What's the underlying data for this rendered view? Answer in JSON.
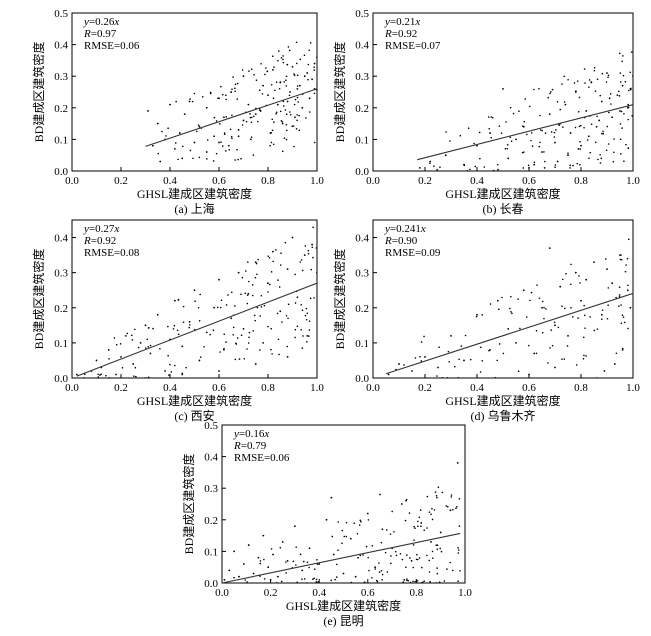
{
  "chart_data": [
    {
      "type": "scatter",
      "caption": "(a) 上海",
      "xlabel": "GHSL建成区建筑密度",
      "ylabel": "BD建成区建筑密度",
      "xlim": [
        0.0,
        1.0
      ],
      "ylim": [
        0.0,
        0.5
      ],
      "x_ticks": [
        "0.0",
        "0.2",
        "0.4",
        "0.6",
        "0.8",
        "1.0"
      ],
      "y_ticks": [
        "0.0",
        "0.1",
        "0.2",
        "0.3",
        "0.4",
        "0.5"
      ],
      "fit": {
        "slope": 0.26,
        "x_range": [
          0.3,
          1.0
        ]
      },
      "annotation": {
        "eq_var": "y",
        "eq_rest": "=0.26",
        "eq_x": "x",
        "r_var": "R",
        "r_rest": "=0.97",
        "rmse": "RMSE=0.06"
      },
      "series": [
        {
          "density": "high",
          "x": [
            0.31,
            0.33,
            0.35,
            0.38,
            0.4,
            0.42,
            0.44,
            0.46,
            0.48,
            0.5,
            0.52,
            0.55,
            0.58,
            0.6,
            0.62,
            0.65,
            0.68,
            0.7,
            0.72,
            0.75,
            0.78,
            0.8,
            0.82,
            0.85,
            0.88,
            0.9,
            0.92,
            0.95,
            0.98,
            1.0,
            0.36,
            0.45,
            0.55,
            0.64,
            0.73,
            0.81,
            0.86,
            0.91,
            0.94,
            0.97,
            0.99,
            0.7,
            0.77,
            0.84,
            0.89,
            0.93,
            0.96,
            0.99,
            0.6,
            0.68
          ],
          "y": [
            0.19,
            0.08,
            0.15,
            0.1,
            0.21,
            0.07,
            0.12,
            0.18,
            0.22,
            0.09,
            0.14,
            0.2,
            0.11,
            0.23,
            0.17,
            0.25,
            0.13,
            0.3,
            0.21,
            0.18,
            0.27,
            0.24,
            0.32,
            0.28,
            0.22,
            0.33,
            0.26,
            0.3,
            0.29,
            0.36,
            0.03,
            0.04,
            0.06,
            0.08,
            0.1,
            0.12,
            0.15,
            0.17,
            0.2,
            0.23,
            0.26,
            0.16,
            0.19,
            0.21,
            0.25,
            0.27,
            0.31,
            0.34,
            0.09,
            0.11
          ]
        }
      ]
    },
    {
      "type": "scatter",
      "caption": "(b) 长春",
      "xlabel": "GHSL建成区建筑密度",
      "ylabel": "BD建成区建筑密度",
      "xlim": [
        0.0,
        1.0
      ],
      "ylim": [
        0.0,
        0.5
      ],
      "x_ticks": [
        "0.0",
        "0.2",
        "0.4",
        "0.6",
        "0.8",
        "1.0"
      ],
      "y_ticks": [
        "0.0",
        "0.1",
        "0.2",
        "0.3",
        "0.4",
        "0.5"
      ],
      "fit": {
        "slope": 0.21,
        "x_range": [
          0.17,
          1.0
        ]
      },
      "annotation": {
        "eq_var": "y",
        "eq_rest": "=0.21",
        "eq_x": "x",
        "r_var": "R",
        "r_rest": "=0.92",
        "rmse": "RMSE=0.07"
      },
      "series": [
        {
          "density": "high",
          "x": [
            0.18,
            0.22,
            0.28,
            0.35,
            0.4,
            0.45,
            0.5,
            0.52,
            0.55,
            0.58,
            0.62,
            0.65,
            0.68,
            0.7,
            0.72,
            0.74,
            0.76,
            0.78,
            0.8,
            0.82,
            0.84,
            0.86,
            0.88,
            0.9,
            0.92,
            0.94,
            0.96,
            0.98,
            1.0,
            0.66,
            0.71,
            0.75,
            0.79,
            0.83,
            0.87,
            0.91,
            0.95,
            0.99,
            0.48,
            0.6
          ],
          "y": [
            0.01,
            0.03,
            0.05,
            0.02,
            0.08,
            0.12,
            0.26,
            0.04,
            0.1,
            0.14,
            0.02,
            0.06,
            0.18,
            0.09,
            0.15,
            0.21,
            0.12,
            0.25,
            0.08,
            0.19,
            0.28,
            0.14,
            0.22,
            0.31,
            0.17,
            0.24,
            0.27,
            0.2,
            0.3,
            0.01,
            0.03,
            0.05,
            0.07,
            0.11,
            0.16,
            0.23,
            0.19,
            0.26,
            0.0,
            0.01
          ]
        }
      ]
    },
    {
      "type": "scatter",
      "caption": "(c) 西安",
      "xlabel": "GHSL建成区建筑密度",
      "ylabel": "BD建成区建筑密度",
      "xlim": [
        0.0,
        1.0
      ],
      "ylim": [
        0.0,
        0.45
      ],
      "x_ticks": [
        "0.0",
        "0.2",
        "0.4",
        "0.6",
        "0.8",
        "1.0"
      ],
      "y_ticks": [
        "0.0",
        "0.1",
        "0.2",
        "0.3",
        "0.4"
      ],
      "fit": {
        "slope": 0.27,
        "x_range": [
          0.02,
          1.0
        ]
      },
      "annotation": {
        "eq_var": "y",
        "eq_rest": "=0.27",
        "eq_x": "x",
        "r_var": "R",
        "r_rest": "=0.92",
        "rmse": "RMSE=0.08"
      },
      "series": [
        {
          "density": "high",
          "x": [
            0.02,
            0.05,
            0.08,
            0.1,
            0.12,
            0.15,
            0.18,
            0.2,
            0.22,
            0.25,
            0.28,
            0.3,
            0.32,
            0.35,
            0.38,
            0.4,
            0.42,
            0.45,
            0.48,
            0.5,
            0.52,
            0.55,
            0.58,
            0.6,
            0.62,
            0.65,
            0.68,
            0.7,
            0.72,
            0.75,
            0.78,
            0.8,
            0.82,
            0.85,
            0.88,
            0.9,
            0.92,
            0.95,
            0.98,
            1.0,
            0.3,
            0.45,
            0.6,
            0.75,
            0.88,
            0.96
          ],
          "y": [
            0.01,
            0.0,
            0.02,
            0.05,
            0.03,
            0.08,
            0.01,
            0.06,
            0.12,
            0.04,
            0.1,
            0.15,
            0.07,
            0.18,
            0.02,
            0.11,
            0.22,
            0.09,
            0.16,
            0.25,
            0.05,
            0.13,
            0.2,
            0.28,
            0.08,
            0.17,
            0.3,
            0.14,
            0.24,
            0.33,
            0.1,
            0.27,
            0.36,
            0.19,
            0.31,
            0.4,
            0.23,
            0.35,
            0.38,
            0.3,
            0.0,
            0.01,
            0.02,
            0.04,
            0.06,
            0.12
          ]
        }
      ]
    },
    {
      "type": "scatter",
      "caption": "(d) 乌鲁木齐",
      "xlabel": "GHSL建成区建筑密度",
      "ylabel": "BD建成区建筑密度",
      "xlim": [
        0.0,
        1.0
      ],
      "ylim": [
        0.0,
        0.45
      ],
      "x_ticks": [
        "0.0",
        "0.2",
        "0.4",
        "0.6",
        "0.8",
        "1.0"
      ],
      "y_ticks": [
        "0.0",
        "0.1",
        "0.2",
        "0.3",
        "0.4"
      ],
      "fit": {
        "slope": 0.241,
        "x_range": [
          0.05,
          1.0
        ]
      },
      "annotation": {
        "eq_var": "y",
        "eq_rest": "=0.241",
        "eq_x": "x",
        "r_var": "R",
        "r_rest": "=0.90",
        "rmse": "RMSE=0.09"
      },
      "series": [
        {
          "density": "medium",
          "x": [
            0.06,
            0.1,
            0.15,
            0.2,
            0.25,
            0.3,
            0.35,
            0.4,
            0.45,
            0.48,
            0.52,
            0.55,
            0.58,
            0.62,
            0.65,
            0.68,
            0.7,
            0.72,
            0.75,
            0.78,
            0.8,
            0.82,
            0.85,
            0.88,
            0.9,
            0.92,
            0.95,
            0.98,
            0.86,
            0.89,
            0.93,
            0.96,
            0.99,
            0.6,
            0.7
          ],
          "y": [
            0.01,
            0.04,
            0.02,
            0.06,
            0.03,
            0.12,
            0.05,
            0.18,
            0.08,
            0.22,
            0.14,
            0.1,
            0.25,
            0.07,
            0.2,
            0.37,
            0.15,
            0.26,
            0.12,
            0.3,
            0.22,
            0.28,
            0.33,
            0.18,
            0.31,
            0.27,
            0.35,
            0.25,
            0.0,
            0.02,
            0.04,
            0.08,
            0.2,
            0.01,
            0.03
          ]
        }
      ]
    },
    {
      "type": "scatter",
      "caption": "(e) 昆明",
      "xlabel": "GHSL建成区建筑密度",
      "ylabel": "BD建成区建筑密度",
      "xlim": [
        0.0,
        1.0
      ],
      "ylim": [
        0.0,
        0.5
      ],
      "x_ticks": [
        "0.0",
        "0.2",
        "0.4",
        "0.6",
        "0.8",
        "1.0"
      ],
      "y_ticks": [
        "0.0",
        "0.1",
        "0.2",
        "0.3",
        "0.4",
        "0.5"
      ],
      "fit": {
        "slope": 0.16,
        "x_range": [
          0.0,
          0.98
        ]
      },
      "annotation": {
        "eq_var": "y",
        "eq_rest": "=0.16",
        "eq_x": "x",
        "r_var": "R",
        "r_rest": "=0.79",
        "rmse": "RMSE=0.06"
      },
      "series": [
        {
          "density": "high",
          "x": [
            0.01,
            0.03,
            0.05,
            0.07,
            0.09,
            0.11,
            0.13,
            0.15,
            0.17,
            0.19,
            0.21,
            0.23,
            0.25,
            0.27,
            0.3,
            0.33,
            0.36,
            0.4,
            0.43,
            0.46,
            0.5,
            0.53,
            0.56,
            0.6,
            0.63,
            0.66,
            0.7,
            0.74,
            0.78,
            0.82,
            0.86,
            0.9,
            0.94,
            0.97,
            0.2,
            0.35,
            0.55,
            0.75,
            0.45,
            0.65
          ],
          "y": [
            0.01,
            0.04,
            0.1,
            0.02,
            0.06,
            0.12,
            0.03,
            0.08,
            0.15,
            0.05,
            0.09,
            0.02,
            0.13,
            0.07,
            0.18,
            0.04,
            0.11,
            0.06,
            0.2,
            0.09,
            0.03,
            0.14,
            0.08,
            0.22,
            0.05,
            0.17,
            0.11,
            0.25,
            0.07,
            0.19,
            0.13,
            0.16,
            0.23,
            0.38,
            0.01,
            0.0,
            0.02,
            0.01,
            0.27,
            0.28
          ]
        }
      ]
    }
  ]
}
